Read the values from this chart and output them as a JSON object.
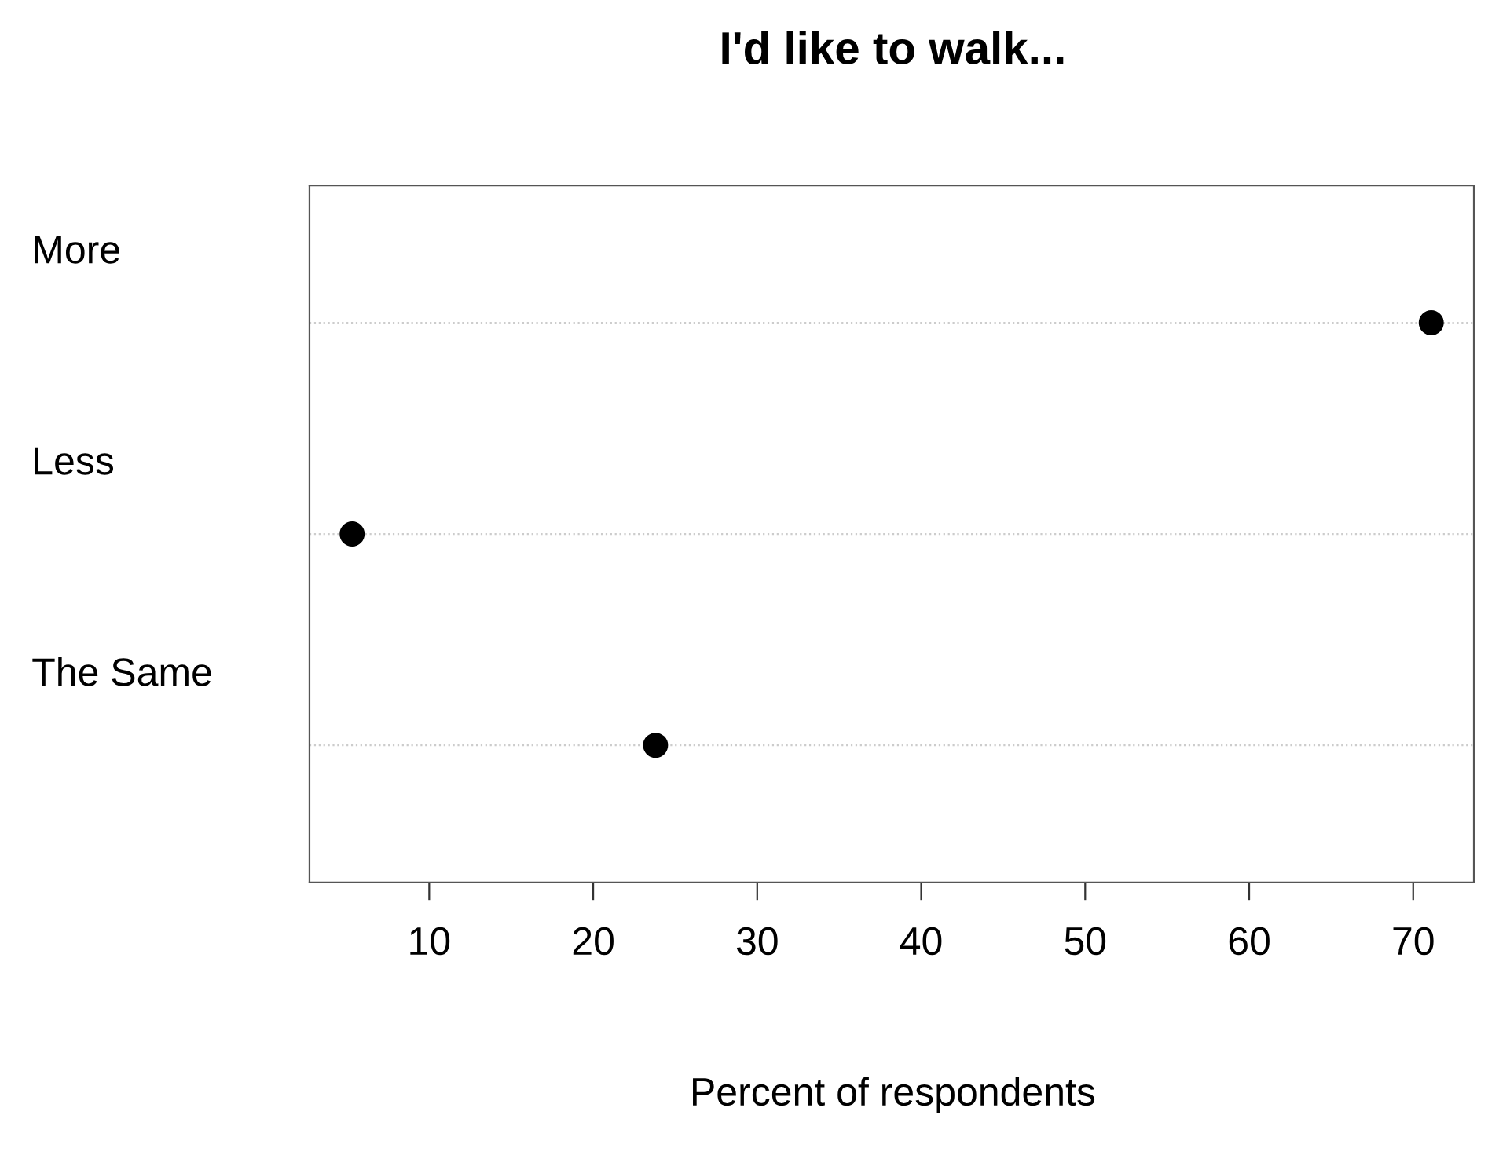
{
  "chart_data": {
    "type": "scatter",
    "title": "I'd like to walk...",
    "xlabel": "Percent of respondents",
    "categories": [
      "More",
      "Less",
      "The Same"
    ],
    "orientation": "horizontal",
    "series": [
      {
        "color": "#000000",
        "values": [
          71.1,
          5.3,
          23.8
        ]
      }
    ],
    "xlim": [
      2.7,
      73.7
    ],
    "xticks": [
      10,
      20,
      30,
      40,
      50,
      60,
      70
    ],
    "grid": "y",
    "marker": "circle"
  }
}
